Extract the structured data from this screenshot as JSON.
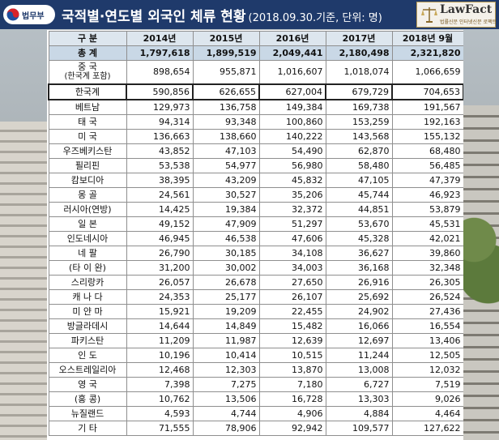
{
  "header": {
    "ministry_label": "법무부",
    "title": "국적별·연도별 외국인 체류 현황",
    "subtitle": "(2018.09.30.기준, 단위: 명)",
    "logo_name": "LawFact",
    "logo_tagline": "법률신문 인터넷신문 로팩트",
    "colors": {
      "header_bg": "#1f3a6b",
      "total_row_bg": "#c9d8e6",
      "header_row_bg": "#dde6ee"
    }
  },
  "table": {
    "columns": [
      "구  분",
      "2014년",
      "2015년",
      "2016년",
      "2017년",
      "2018년 9월"
    ],
    "total": {
      "label": "총    계",
      "values": [
        "1,797,618",
        "1,899,519",
        "2,049,441",
        "2,180,498",
        "2,321,820"
      ]
    },
    "china": {
      "label": "중 국",
      "sublabel": "(한국계 포함)",
      "values": [
        "898,654",
        "955,871",
        "1,016,607",
        "1,018,074",
        "1,066,659"
      ]
    },
    "rows": [
      {
        "label": "한국계",
        "values": [
          "590,856",
          "626,655",
          "627,004",
          "679,729",
          "704,653"
        ],
        "highlight": true
      },
      {
        "label": "베트남",
        "values": [
          "129,973",
          "136,758",
          "149,384",
          "169,738",
          "191,567"
        ]
      },
      {
        "label": "태 국",
        "values": [
          "94,314",
          "93,348",
          "100,860",
          "153,259",
          "192,163"
        ]
      },
      {
        "label": "미 국",
        "values": [
          "136,663",
          "138,660",
          "140,222",
          "143,568",
          "155,132"
        ]
      },
      {
        "label": "우즈베키스탄",
        "values": [
          "43,852",
          "47,103",
          "54,490",
          "62,870",
          "68,480"
        ]
      },
      {
        "label": "필리핀",
        "values": [
          "53,538",
          "54,977",
          "56,980",
          "58,480",
          "56,485"
        ]
      },
      {
        "label": "캄보디아",
        "values": [
          "38,395",
          "43,209",
          "45,832",
          "47,105",
          "47,379"
        ]
      },
      {
        "label": "몽 골",
        "values": [
          "24,561",
          "30,527",
          "35,206",
          "45,744",
          "46,923"
        ]
      },
      {
        "label": "러시아(연방)",
        "values": [
          "14,425",
          "19,384",
          "32,372",
          "44,851",
          "53,879"
        ]
      },
      {
        "label": "일 본",
        "values": [
          "49,152",
          "47,909",
          "51,297",
          "53,670",
          "45,531"
        ]
      },
      {
        "label": "인도네시아",
        "values": [
          "46,945",
          "46,538",
          "47,606",
          "45,328",
          "42,021"
        ]
      },
      {
        "label": "네 팔",
        "values": [
          "26,790",
          "30,185",
          "34,108",
          "36,627",
          "39,860"
        ]
      },
      {
        "label": "(타 이 완)",
        "values": [
          "31,200",
          "30,002",
          "34,003",
          "36,168",
          "32,348"
        ]
      },
      {
        "label": "스리랑카",
        "values": [
          "26,057",
          "26,678",
          "27,650",
          "26,916",
          "26,305"
        ]
      },
      {
        "label": "캐 나 다",
        "values": [
          "24,353",
          "25,177",
          "26,107",
          "25,692",
          "26,524"
        ]
      },
      {
        "label": "미 얀 마",
        "values": [
          "15,921",
          "19,209",
          "22,455",
          "24,902",
          "27,436"
        ]
      },
      {
        "label": "방글라데시",
        "values": [
          "14,644",
          "14,849",
          "15,482",
          "16,066",
          "16,554"
        ]
      },
      {
        "label": "파키스탄",
        "values": [
          "11,209",
          "11,987",
          "12,639",
          "12,697",
          "13,406"
        ]
      },
      {
        "label": "인 도",
        "values": [
          "10,196",
          "10,414",
          "10,515",
          "11,244",
          "12,505"
        ]
      },
      {
        "label": "오스트레일리아",
        "values": [
          "12,468",
          "12,303",
          "13,870",
          "13,008",
          "12,032"
        ]
      },
      {
        "label": "영 국",
        "values": [
          "7,398",
          "7,275",
          "7,180",
          "6,727",
          "7,519"
        ]
      },
      {
        "label": "(홍 콩)",
        "values": [
          "10,762",
          "13,506",
          "16,728",
          "13,303",
          "9,026"
        ]
      },
      {
        "label": "뉴질랜드",
        "values": [
          "4,593",
          "4,744",
          "4,906",
          "4,884",
          "4,464"
        ]
      },
      {
        "label": "기 타",
        "values": [
          "71,555",
          "78,906",
          "92,942",
          "109,577",
          "127,622"
        ]
      }
    ]
  }
}
